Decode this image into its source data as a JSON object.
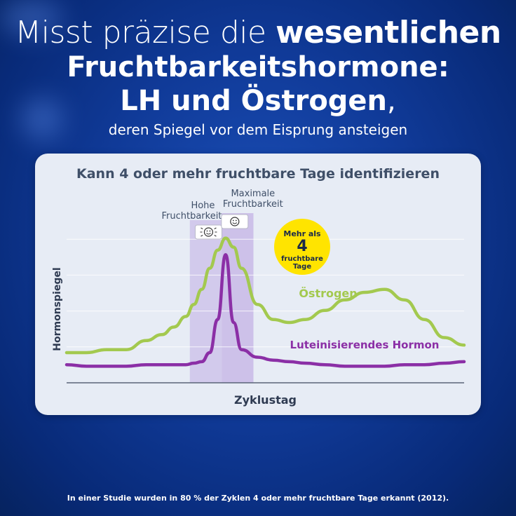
{
  "headline": {
    "line1_light": "Misst präzise die ",
    "line1_bold": "wesentlichen",
    "line2": "Fruchtbarkeitshormone:",
    "line3_bold": "LH und Östrogen",
    "line3_tail": ",",
    "subline": "deren Spiegel vor dem Eisprung ansteigen"
  },
  "footnote": "In einer Studie wurden in 80 % der Zyklen 4 oder mehr fruchtbare Tage erkannt (2012).",
  "colors": {
    "oestrogen": "#a3c94f",
    "lh": "#8b2fa6",
    "band": "#cbbfe8",
    "badge": "#ffe400"
  },
  "chart_data": {
    "type": "line",
    "title": "Kann 4 oder mehr fruchtbare Tage identifizieren",
    "xlabel": "Zyklustag",
    "ylabel": "Hormonspiegel",
    "x": [
      0,
      5,
      10,
      15,
      20,
      24,
      27,
      30,
      32,
      34,
      36,
      38,
      40,
      42,
      44,
      48,
      52,
      56,
      60,
      65,
      70,
      75,
      80,
      85,
      90,
      95,
      100
    ],
    "xlim": [
      0,
      100
    ],
    "ylim": [
      0,
      100
    ],
    "grid": true,
    "series": [
      {
        "name": "Östrogen",
        "values": [
          20,
          20,
          22,
          22,
          28,
          32,
          37,
          44,
          52,
          62,
          76,
          88,
          96,
          90,
          76,
          52,
          42,
          40,
          42,
          48,
          55,
          60,
          62,
          55,
          42,
          30,
          25
        ]
      },
      {
        "name": "Luteinisierendes Hormon",
        "values": [
          12,
          11,
          11,
          11,
          12,
          12,
          12,
          12,
          13,
          14,
          20,
          42,
          85,
          40,
          22,
          17,
          15,
          14,
          13,
          12,
          11,
          11,
          11,
          12,
          12,
          13,
          14
        ]
      }
    ],
    "bands": [
      {
        "label": "Hohe Fruchtbarkeit",
        "x_start": 31,
        "x_end": 39,
        "icon": "smiley-flash-icon"
      },
      {
        "label": "Maximale Fruchtbarkeit",
        "x_start": 39,
        "x_end": 47,
        "icon": "smiley-icon"
      }
    ],
    "callout": {
      "line1": "Mehr als",
      "number": "4",
      "line2": "fruchtbare",
      "line3": "Tage"
    }
  }
}
